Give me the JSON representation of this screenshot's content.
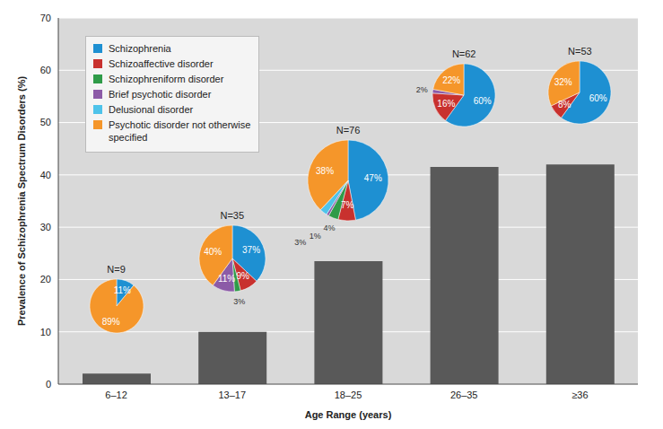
{
  "chart_data": [
    {
      "type": "bar",
      "categories": [
        "6–12",
        "13–17",
        "18–25",
        "26–35",
        "≥36"
      ],
      "values": [
        2,
        10,
        23.5,
        41.5,
        42
      ],
      "color": "#595959",
      "ylim": [
        0,
        70
      ],
      "yticks": [
        0,
        10,
        20,
        30,
        40,
        50,
        60,
        70
      ],
      "grid": true,
      "xlabel": "Age Range (years)",
      "ylabel": "Prevalence of Schizophrenia Spectrum Disorders (%)"
    },
    {
      "type": "pie",
      "title": "N=9",
      "categories": [
        "Schizophrenia",
        "Psychotic disorder not otherwise specified"
      ],
      "values": [
        11,
        89
      ],
      "value_labels": [
        "11%",
        "89%"
      ],
      "colors": [
        "#1e90d2",
        "#f5962a"
      ],
      "data_labels": true
    },
    {
      "type": "pie",
      "title": "N=35",
      "categories": [
        "Schizophrenia",
        "Schizoaffective disorder",
        "Schizophreniform disorder",
        "Brief psychotic disorder",
        "Psychotic disorder not otherwise specified"
      ],
      "values": [
        37,
        9,
        3,
        11,
        40
      ],
      "value_labels": [
        "37%",
        "9%",
        "3%",
        "11%",
        "40%"
      ],
      "colors": [
        "#1e90d2",
        "#c8312e",
        "#2f9b48",
        "#8c5ba7",
        "#f5962a"
      ],
      "data_labels": true
    },
    {
      "type": "pie",
      "title": "N=76",
      "categories": [
        "Schizophrenia",
        "Schizoaffective disorder",
        "Schizophreniform disorder",
        "Brief psychotic disorder",
        "Delusional disorder",
        "Psychotic disorder not otherwise specified"
      ],
      "values": [
        47,
        7,
        4,
        1,
        3,
        38
      ],
      "value_labels": [
        "47%",
        "7%",
        "4%",
        "1%",
        "3%",
        "38%"
      ],
      "colors": [
        "#1e90d2",
        "#c8312e",
        "#2f9b48",
        "#8c5ba7",
        "#4ec3ea",
        "#f5962a"
      ],
      "data_labels": true,
      "legend": "upper left"
    },
    {
      "type": "pie",
      "title": "N=62",
      "categories": [
        "Schizophrenia",
        "Schizoaffective disorder",
        "Brief psychotic disorder",
        "Psychotic disorder not otherwise specified"
      ],
      "values": [
        60,
        16,
        2,
        22
      ],
      "value_labels": [
        "60%",
        "16%",
        "2%",
        "22%"
      ],
      "colors": [
        "#1e90d2",
        "#c8312e",
        "#8c5ba7",
        "#f5962a"
      ],
      "data_labels": true
    },
    {
      "type": "pie",
      "title": "N=53",
      "categories": [
        "Schizophrenia",
        "Schizoaffective disorder",
        "Psychotic disorder not otherwise specified"
      ],
      "values": [
        60,
        8,
        32
      ],
      "value_labels": [
        "60%",
        "8%",
        "32%"
      ],
      "colors": [
        "#1e90d2",
        "#c8312e",
        "#f5962a"
      ],
      "data_labels": true
    }
  ]
}
